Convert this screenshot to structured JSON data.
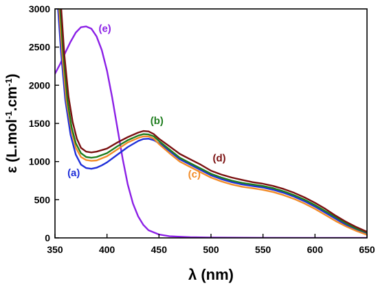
{
  "chart_data": {
    "type": "line",
    "xlabel_symbol": "λ",
    "xlabel_unit": "(nm)",
    "ylabel_parts": [
      "ε (L.mol",
      "-1",
      ".cm",
      "-1",
      ")"
    ],
    "xlim": [
      350,
      650
    ],
    "ylim": [
      0,
      3000
    ],
    "xticks": [
      350,
      400,
      450,
      500,
      550,
      600,
      650
    ],
    "yticks": [
      0,
      500,
      1000,
      1500,
      2000,
      2500,
      3000
    ],
    "grid": false,
    "series": [
      {
        "label": "(e)",
        "color": "#8B1FE6",
        "points": [
          [
            350,
            2150
          ],
          [
            355,
            2280
          ],
          [
            360,
            2430
          ],
          [
            365,
            2570
          ],
          [
            370,
            2690
          ],
          [
            375,
            2760
          ],
          [
            380,
            2770
          ],
          [
            385,
            2740
          ],
          [
            390,
            2640
          ],
          [
            395,
            2460
          ],
          [
            400,
            2190
          ],
          [
            405,
            1840
          ],
          [
            410,
            1440
          ],
          [
            415,
            1040
          ],
          [
            420,
            700
          ],
          [
            425,
            450
          ],
          [
            430,
            280
          ],
          [
            435,
            170
          ],
          [
            440,
            100
          ],
          [
            450,
            45
          ],
          [
            460,
            22
          ],
          [
            480,
            10
          ],
          [
            500,
            5
          ],
          [
            550,
            2
          ],
          [
            600,
            1
          ],
          [
            650,
            0
          ]
        ]
      },
      {
        "label": "(a)",
        "color": "#1F2FD9",
        "points": [
          [
            353,
            3000
          ],
          [
            356,
            2400
          ],
          [
            360,
            1800
          ],
          [
            365,
            1350
          ],
          [
            370,
            1090
          ],
          [
            375,
            960
          ],
          [
            380,
            915
          ],
          [
            385,
            905
          ],
          [
            390,
            920
          ],
          [
            395,
            950
          ],
          [
            400,
            990
          ],
          [
            410,
            1090
          ],
          [
            420,
            1190
          ],
          [
            430,
            1270
          ],
          [
            435,
            1295
          ],
          [
            440,
            1300
          ],
          [
            445,
            1280
          ],
          [
            450,
            1240
          ],
          [
            460,
            1140
          ],
          [
            470,
            1030
          ],
          [
            480,
            960
          ],
          [
            490,
            890
          ],
          [
            500,
            820
          ],
          [
            510,
            770
          ],
          [
            520,
            730
          ],
          [
            530,
            700
          ],
          [
            540,
            680
          ],
          [
            550,
            660
          ],
          [
            560,
            630
          ],
          [
            570,
            590
          ],
          [
            580,
            540
          ],
          [
            590,
            480
          ],
          [
            600,
            410
          ],
          [
            610,
            330
          ],
          [
            620,
            250
          ],
          [
            630,
            170
          ],
          [
            640,
            110
          ],
          [
            650,
            60
          ]
        ]
      },
      {
        "label": "(c)",
        "color": "#F28C28",
        "points": [
          [
            354,
            3000
          ],
          [
            357,
            2400
          ],
          [
            361,
            1800
          ],
          [
            366,
            1400
          ],
          [
            370,
            1180
          ],
          [
            375,
            1060
          ],
          [
            380,
            1020
          ],
          [
            385,
            1010
          ],
          [
            390,
            1015
          ],
          [
            400,
            1070
          ],
          [
            410,
            1160
          ],
          [
            420,
            1250
          ],
          [
            430,
            1310
          ],
          [
            435,
            1330
          ],
          [
            440,
            1330
          ],
          [
            445,
            1300
          ],
          [
            450,
            1230
          ],
          [
            460,
            1110
          ],
          [
            470,
            1000
          ],
          [
            480,
            930
          ],
          [
            490,
            860
          ],
          [
            500,
            790
          ],
          [
            510,
            740
          ],
          [
            520,
            700
          ],
          [
            530,
            670
          ],
          [
            540,
            650
          ],
          [
            550,
            630
          ],
          [
            560,
            600
          ],
          [
            570,
            560
          ],
          [
            580,
            510
          ],
          [
            590,
            450
          ],
          [
            600,
            380
          ],
          [
            610,
            300
          ],
          [
            620,
            220
          ],
          [
            630,
            150
          ],
          [
            640,
            90
          ],
          [
            650,
            40
          ]
        ]
      },
      {
        "label": "(b)",
        "color": "#1E7D1E",
        "points": [
          [
            355,
            3000
          ],
          [
            358,
            2400
          ],
          [
            362,
            1800
          ],
          [
            366,
            1450
          ],
          [
            370,
            1240
          ],
          [
            375,
            1110
          ],
          [
            380,
            1060
          ],
          [
            385,
            1050
          ],
          [
            390,
            1060
          ],
          [
            400,
            1110
          ],
          [
            410,
            1200
          ],
          [
            420,
            1280
          ],
          [
            430,
            1340
          ],
          [
            435,
            1360
          ],
          [
            440,
            1355
          ],
          [
            445,
            1330
          ],
          [
            450,
            1270
          ],
          [
            460,
            1160
          ],
          [
            470,
            1050
          ],
          [
            480,
            980
          ],
          [
            490,
            910
          ],
          [
            500,
            840
          ],
          [
            510,
            790
          ],
          [
            520,
            750
          ],
          [
            530,
            720
          ],
          [
            540,
            700
          ],
          [
            550,
            680
          ],
          [
            560,
            650
          ],
          [
            570,
            610
          ],
          [
            580,
            560
          ],
          [
            590,
            500
          ],
          [
            600,
            430
          ],
          [
            610,
            350
          ],
          [
            620,
            270
          ],
          [
            630,
            190
          ],
          [
            640,
            120
          ],
          [
            650,
            70
          ]
        ]
      },
      {
        "label": "(d)",
        "color": "#7A1010",
        "points": [
          [
            356,
            3000
          ],
          [
            359,
            2400
          ],
          [
            363,
            1850
          ],
          [
            367,
            1520
          ],
          [
            371,
            1300
          ],
          [
            375,
            1180
          ],
          [
            380,
            1130
          ],
          [
            385,
            1120
          ],
          [
            390,
            1130
          ],
          [
            400,
            1170
          ],
          [
            410,
            1250
          ],
          [
            420,
            1320
          ],
          [
            430,
            1380
          ],
          [
            435,
            1400
          ],
          [
            440,
            1395
          ],
          [
            445,
            1360
          ],
          [
            450,
            1300
          ],
          [
            460,
            1200
          ],
          [
            470,
            1100
          ],
          [
            480,
            1030
          ],
          [
            490,
            960
          ],
          [
            500,
            880
          ],
          [
            510,
            830
          ],
          [
            520,
            790
          ],
          [
            530,
            760
          ],
          [
            540,
            730
          ],
          [
            550,
            710
          ],
          [
            560,
            680
          ],
          [
            570,
            640
          ],
          [
            580,
            590
          ],
          [
            590,
            530
          ],
          [
            600,
            460
          ],
          [
            610,
            380
          ],
          [
            620,
            290
          ],
          [
            630,
            210
          ],
          [
            640,
            140
          ],
          [
            650,
            80
          ]
        ]
      }
    ],
    "annotations": [
      {
        "text": "(e)",
        "color": "#8B1FE6",
        "x": 398,
        "y": 2700
      },
      {
        "text": "(b)",
        "color": "#1E7D1E",
        "x": 448,
        "y": 1490
      },
      {
        "text": "(d)",
        "color": "#7A1010",
        "x": 508,
        "y": 1000
      },
      {
        "text": "(c)",
        "color": "#F28C28",
        "x": 484,
        "y": 790
      },
      {
        "text": "(a)",
        "color": "#1F2FD9",
        "x": 368,
        "y": 810
      }
    ]
  }
}
